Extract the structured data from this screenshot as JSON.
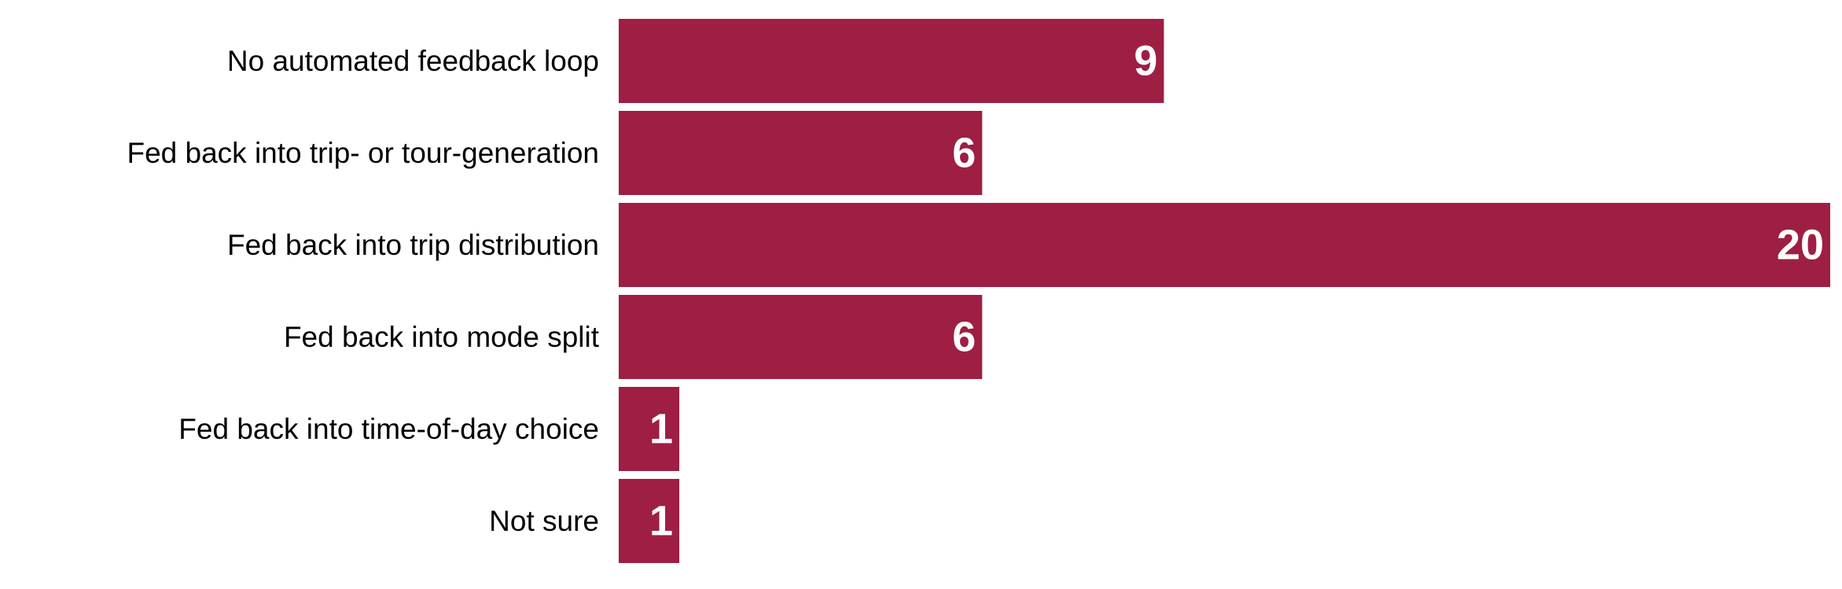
{
  "chart_data": {
    "type": "bar",
    "orientation": "horizontal",
    "categories": [
      "No automated feedback loop",
      "Fed back into trip- or tour-generation",
      "Fed back into trip distribution",
      "Fed back into mode split",
      "Fed back into time-of-day choice",
      "Not sure"
    ],
    "values": [
      9,
      6,
      20,
      6,
      1,
      1
    ],
    "data_labels": [
      "9",
      "6",
      "20",
      "6",
      "1",
      "1"
    ],
    "title": "",
    "xlabel": "",
    "ylabel": "",
    "xlim": [
      0,
      20
    ],
    "grid": false,
    "legend": "none",
    "bar_color": "#9e1f43",
    "label_color": "#ffffff"
  }
}
